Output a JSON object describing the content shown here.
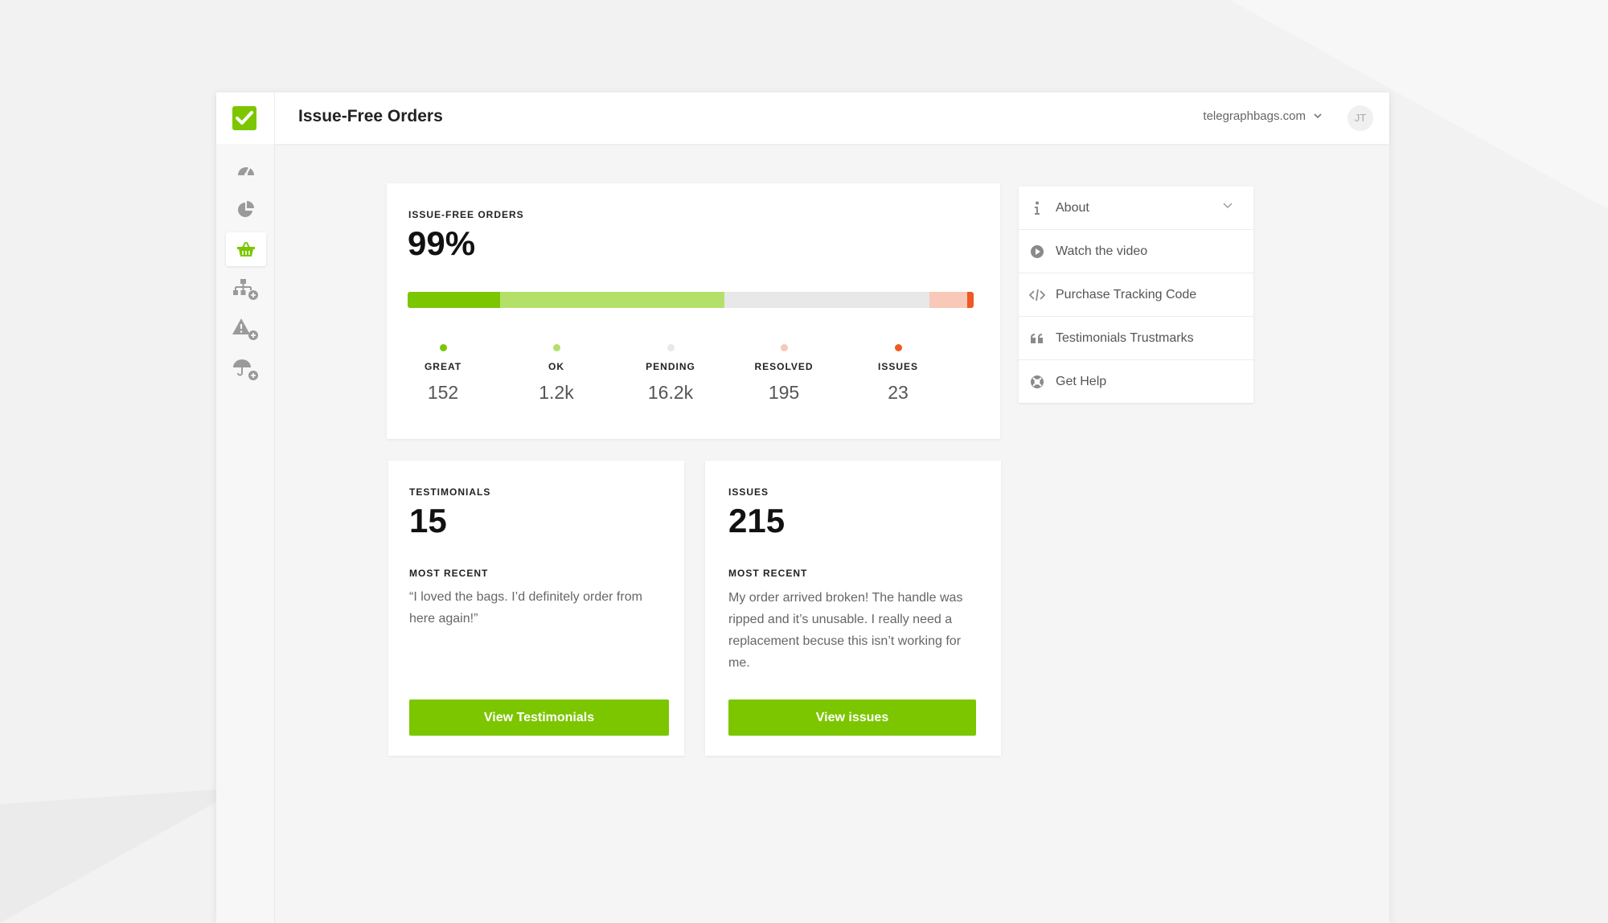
{
  "header": {
    "title": "Issue-Free Orders",
    "store": "telegraphbags.com",
    "avatar_initials": "JT"
  },
  "sidebar": {
    "items": [
      {
        "icon": "speedometer-icon",
        "active": false
      },
      {
        "icon": "pie-chart-icon",
        "active": false
      },
      {
        "icon": "basket-icon",
        "active": true
      },
      {
        "icon": "sitemap-add-icon",
        "active": false
      },
      {
        "icon": "warning-add-icon",
        "active": false
      },
      {
        "icon": "umbrella-add-icon",
        "active": false
      }
    ]
  },
  "summary": {
    "label": "ISSUE-FREE ORDERS",
    "value": "99%",
    "stats": [
      {
        "name": "GREAT",
        "value": "152",
        "color": "#7cc600"
      },
      {
        "name": "OK",
        "value": "1.2k",
        "color": "#b4e06a"
      },
      {
        "name": "PENDING",
        "value": "16.2k",
        "color": "#e8e8e8"
      },
      {
        "name": "RESOLVED",
        "value": "195",
        "color": "#f8c8b8"
      },
      {
        "name": "ISSUES",
        "value": "23",
        "color": "#ee5a24"
      }
    ]
  },
  "testimonials": {
    "label": "TESTIMONIALS",
    "value": "15",
    "recent_label": "MOST RECENT",
    "quote": "“I loved the bags. I’d definitely order from here again!”",
    "button": "View Testimonials"
  },
  "issues": {
    "label": "ISSUES",
    "value": "215",
    "recent_label": "MOST RECENT",
    "quote": "My order arrived broken! The handle was ripped and it’s unusable. I really need a replacement becuse this isn’t working for me.",
    "button": "View issues"
  },
  "help": {
    "items": [
      {
        "label": "About",
        "icon": "info-icon"
      },
      {
        "label": "Watch the video",
        "icon": "play-icon"
      },
      {
        "label": "Purchase Tracking Code",
        "icon": "code-icon"
      },
      {
        "label": "Testimonials Trustmarks",
        "icon": "quote-icon"
      },
      {
        "label": "Get Help",
        "icon": "lifebuoy-icon"
      }
    ]
  },
  "colors": {
    "accent": "#7cc600"
  }
}
